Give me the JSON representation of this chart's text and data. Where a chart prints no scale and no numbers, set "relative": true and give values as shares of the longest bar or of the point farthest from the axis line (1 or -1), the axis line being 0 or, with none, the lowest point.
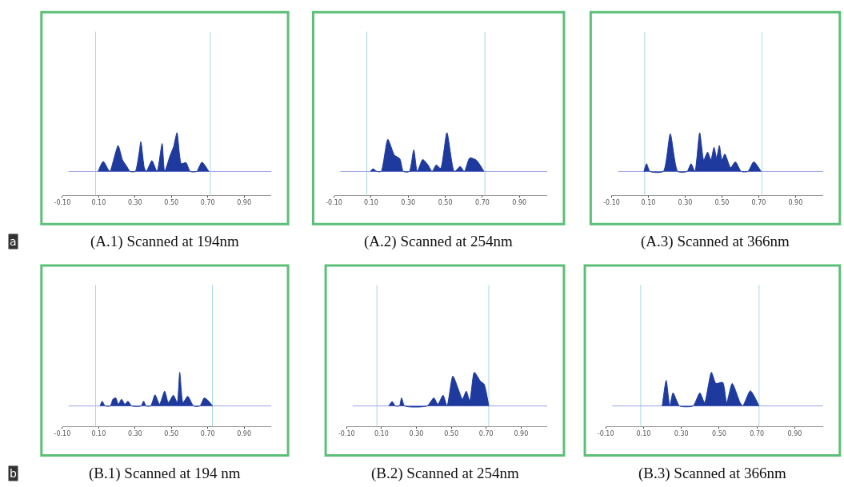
{
  "chart_data": [
    {
      "type": "area",
      "title": "(A.1) Scanned at 194nm",
      "relative": true,
      "xlim": [
        -0.1,
        1.05
      ],
      "xticks": [
        {
          "value": -0.1,
          "label": "-0.10"
        },
        {
          "value": 0.1,
          "label": "0.10"
        },
        {
          "value": 0.3,
          "label": "0.30"
        },
        {
          "value": 0.5,
          "label": "0.50"
        },
        {
          "value": 0.7,
          "label": "0.70"
        },
        {
          "value": 0.9,
          "label": "0.90"
        }
      ],
      "tick_labels": "x",
      "annotations": [
        "a"
      ],
      "ref_lines": [
        {
          "axis": "x",
          "value": 0.083,
          "color": "#a8d8e0"
        },
        {
          "axis": "x",
          "value": 0.714,
          "color": "#a8d8e0"
        },
        {
          "axis": "y",
          "value": 0,
          "color": "#9aa6e6"
        }
      ],
      "series": [
        {
          "color": "#1f3a9e",
          "x": [
            0.097,
            0.125,
            0.161,
            0.182,
            0.207,
            0.231,
            0.252,
            0.273,
            0.301,
            0.323,
            0.332,
            0.351,
            0.362,
            0.393,
            0.421,
            0.449,
            0.463,
            0.492,
            0.513,
            0.531,
            0.555,
            0.58,
            0.604,
            0.639,
            0.668,
            0.706
          ],
          "values": [
            0,
            0.26,
            0,
            0.3,
            0.67,
            0.3,
            0.15,
            0,
            0,
            0.5,
            0.77,
            0.1,
            0,
            0.28,
            0,
            0.72,
            0,
            0.4,
            0.65,
            1,
            0.2,
            0.23,
            0,
            0,
            0.24,
            0
          ]
        }
      ]
    },
    {
      "type": "area",
      "title": "(A.2) Scanned at 254nm",
      "relative": true,
      "xlim": [
        -0.1,
        1.05
      ],
      "xticks": [
        {
          "value": -0.1,
          "label": "-0.10"
        },
        {
          "value": 0.1,
          "label": "0.10"
        },
        {
          "value": 0.3,
          "label": "0.30"
        },
        {
          "value": 0.5,
          "label": "0.50"
        },
        {
          "value": 0.7,
          "label": "0.70"
        },
        {
          "value": 0.9,
          "label": "0.90"
        }
      ],
      "tick_labels": "x",
      "ref_lines": [
        {
          "axis": "x",
          "value": 0.077,
          "color": "#a8d8e0"
        },
        {
          "axis": "x",
          "value": 0.714,
          "color": "#a8d8e0"
        },
        {
          "axis": "y",
          "value": 0,
          "color": "#9aa6e6"
        }
      ],
      "series": [
        {
          "color": "#1f3a9e",
          "x": [
            0.096,
            0.11,
            0.132,
            0.154,
            0.19,
            0.226,
            0.255,
            0.274,
            0.306,
            0.33,
            0.349,
            0.378,
            0.407,
            0.429,
            0.451,
            0.475,
            0.509,
            0.549,
            0.581,
            0.603,
            0.632,
            0.668,
            0.709
          ],
          "values": [
            0,
            0.07,
            0,
            0,
            0.83,
            0.42,
            0.33,
            0,
            0,
            0.56,
            0,
            0.31,
            0.17,
            0,
            0.17,
            0.08,
            1,
            0,
            0.13,
            0,
            0.35,
            0.29,
            0
          ]
        }
      ]
    },
    {
      "type": "area",
      "title": "(A.3) Scanned at 366nm",
      "relative": true,
      "xlim": [
        -0.1,
        1.05
      ],
      "xticks": [
        {
          "value": -0.1,
          "label": "-0.10"
        },
        {
          "value": 0.1,
          "label": "0.10"
        },
        {
          "value": 0.3,
          "label": "0.30"
        },
        {
          "value": 0.5,
          "label": "0.50"
        },
        {
          "value": 0.7,
          "label": "0.70"
        },
        {
          "value": 0.9,
          "label": "0.90"
        }
      ],
      "tick_labels": "x",
      "ref_lines": [
        {
          "axis": "x",
          "value": 0.08,
          "color": "#a8d8e0"
        },
        {
          "axis": "x",
          "value": 0.717,
          "color": "#a8d8e0"
        },
        {
          "axis": "y",
          "value": 0,
          "color": "#9aa6e6"
        }
      ],
      "series": [
        {
          "color": "#1f3a9e",
          "x": [
            0.076,
            0.09,
            0.109,
            0.181,
            0.219,
            0.26,
            0.31,
            0.332,
            0.353,
            0.379,
            0.401,
            0.422,
            0.44,
            0.457,
            0.471,
            0.486,
            0.5,
            0.516,
            0.547,
            0.573,
            0.605,
            0.641,
            0.673,
            0.713
          ],
          "values": [
            0,
            0.2,
            0,
            0,
            0.97,
            0,
            0,
            0.2,
            0,
            1,
            0.3,
            0.5,
            0.3,
            0.62,
            0.35,
            0.67,
            0.3,
            0.45,
            0.1,
            0.25,
            0,
            0,
            0.25,
            0
          ]
        }
      ]
    },
    {
      "type": "area",
      "title": "(B.1) Scanned at 194 nm",
      "relative": true,
      "xlim": [
        -0.1,
        1.05
      ],
      "xticks": [
        {
          "value": -0.1,
          "label": "-0.10"
        },
        {
          "value": 0.1,
          "label": "0.10"
        },
        {
          "value": 0.3,
          "label": "0.30"
        },
        {
          "value": 0.5,
          "label": "0.50"
        },
        {
          "value": 0.7,
          "label": "0.70"
        },
        {
          "value": 0.9,
          "label": "0.90"
        }
      ],
      "tick_labels": "x",
      "annotations": [
        "b"
      ],
      "ref_lines": [
        {
          "axis": "x",
          "value": 0.083,
          "color": "#a8d8e0"
        },
        {
          "axis": "x",
          "value": 0.726,
          "color": "#a8d8e0"
        },
        {
          "axis": "y",
          "value": 0,
          "color": "#9aa6e6"
        }
      ],
      "series": [
        {
          "color": "#1f3a9e",
          "x": [
            0.108,
            0.119,
            0.136,
            0.164,
            0.178,
            0.194,
            0.208,
            0.226,
            0.244,
            0.261,
            0.282,
            0.333,
            0.347,
            0.361,
            0.386,
            0.41,
            0.435,
            0.463,
            0.483,
            0.511,
            0.532,
            0.546,
            0.564,
            0.59,
            0.622,
            0.657,
            0.681,
            0.706,
            0.726
          ],
          "values": [
            0,
            0.14,
            0,
            0,
            0.2,
            0.24,
            0.05,
            0.2,
            0.05,
            0.14,
            0,
            0,
            0.14,
            0,
            0,
            0.33,
            0.05,
            0.44,
            0.1,
            0.32,
            0.1,
            1,
            0.1,
            0.29,
            0,
            0,
            0.24,
            0.14,
            0
          ]
        }
      ]
    },
    {
      "type": "area",
      "title": "(B.2) Scanned at 254nm",
      "relative": true,
      "xlim": [
        -0.1,
        1.05
      ],
      "xticks": [
        {
          "value": -0.1,
          "label": "-0.10"
        },
        {
          "value": 0.1,
          "label": "0.10"
        },
        {
          "value": 0.3,
          "label": "0.30"
        },
        {
          "value": 0.5,
          "label": "0.50"
        },
        {
          "value": 0.7,
          "label": "0.70"
        },
        {
          "value": 0.9,
          "label": "0.90"
        }
      ],
      "tick_labels": "x",
      "ref_lines": [
        {
          "axis": "x",
          "value": 0.074,
          "color": "#a8d8e0"
        },
        {
          "axis": "x",
          "value": 0.715,
          "color": "#a8d8e0"
        },
        {
          "axis": "y",
          "value": 0,
          "color": "#9aa6e6"
        }
      ],
      "series": [
        {
          "color": "#1f3a9e",
          "x": [
            0.142,
            0.161,
            0.18,
            0.203,
            0.215,
            0.233,
            0.362,
            0.4,
            0.423,
            0.453,
            0.476,
            0.509,
            0.544,
            0.564,
            0.586,
            0.606,
            0.632,
            0.668,
            0.688,
            0.715
          ],
          "values": [
            0,
            0.13,
            0,
            0,
            0.24,
            0,
            0,
            0.24,
            0.05,
            0.32,
            0,
            0.89,
            0.45,
            0.2,
            0.44,
            0.15,
            1,
            0.73,
            0.65,
            0
          ]
        }
      ]
    },
    {
      "type": "area",
      "title": "(B.3) Scanned at 366nm",
      "relative": true,
      "xlim": [
        -0.1,
        1.05
      ],
      "xticks": [
        {
          "value": -0.1,
          "label": "-0.10"
        },
        {
          "value": 0.1,
          "label": "0.10"
        },
        {
          "value": 0.3,
          "label": "0.30"
        },
        {
          "value": 0.5,
          "label": "0.50"
        },
        {
          "value": 0.7,
          "label": "0.70"
        },
        {
          "value": 0.9,
          "label": "0.90"
        }
      ],
      "tick_labels": "x",
      "ref_lines": [
        {
          "axis": "x",
          "value": 0.085,
          "color": "#a8d8e0"
        },
        {
          "axis": "x",
          "value": 0.711,
          "color": "#a8d8e0"
        },
        {
          "axis": "y",
          "value": 0,
          "color": "#9aa6e6"
        }
      ],
      "series": [
        {
          "color": "#1f3a9e",
          "x": [
            0.199,
            0.22,
            0.239,
            0.256,
            0.291,
            0.362,
            0.398,
            0.423,
            0.459,
            0.483,
            0.519,
            0.54,
            0.569,
            0.611,
            0.625,
            0.665,
            0.711
          ],
          "values": [
            0,
            0.76,
            0,
            0.39,
            0,
            0,
            0.39,
            0.1,
            1,
            0.67,
            0.7,
            0.1,
            0.67,
            0.1,
            0,
            0.45,
            0
          ]
        }
      ]
    }
  ]
}
